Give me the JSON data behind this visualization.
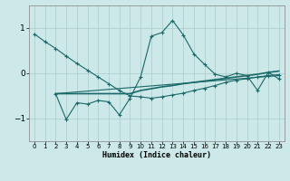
{
  "xlabel": "Humidex (Indice chaleur)",
  "background_color": "#cce8e8",
  "grid_color": "#aacccc",
  "line_color": "#1a6868",
  "xlim": [
    -0.5,
    23.5
  ],
  "ylim": [
    -1.5,
    1.5
  ],
  "yticks": [
    -1,
    0,
    1
  ],
  "xticks": [
    0,
    1,
    2,
    3,
    4,
    5,
    6,
    7,
    8,
    9,
    10,
    11,
    12,
    13,
    14,
    15,
    16,
    17,
    18,
    19,
    20,
    21,
    22,
    23
  ],
  "line1_x": [
    0,
    1,
    2,
    3,
    4,
    5,
    6,
    7,
    8,
    9,
    10,
    11,
    12,
    13,
    14,
    15,
    16,
    17,
    18,
    19,
    20,
    21,
    22,
    23
  ],
  "line1_y": [
    0.87,
    0.7,
    0.55,
    0.38,
    0.22,
    0.07,
    -0.08,
    -0.23,
    -0.38,
    -0.5,
    -0.52,
    -0.55,
    -0.52,
    -0.48,
    -0.44,
    -0.38,
    -0.33,
    -0.27,
    -0.2,
    -0.15,
    -0.12,
    -0.08,
    -0.05,
    -0.03
  ],
  "line2_x": [
    2,
    3,
    4,
    5,
    6,
    7,
    8,
    9,
    10,
    11,
    12,
    13,
    14,
    15,
    16,
    17,
    18,
    19,
    20,
    21,
    22,
    23
  ],
  "line2_y": [
    -0.45,
    -1.02,
    -0.65,
    -0.68,
    -0.6,
    -0.63,
    -0.92,
    -0.55,
    -0.08,
    0.82,
    0.9,
    1.17,
    0.85,
    0.43,
    0.2,
    -0.02,
    -0.08,
    0.0,
    -0.05,
    -0.38,
    0.02,
    -0.12
  ],
  "line3_x": [
    2,
    23
  ],
  "line3_y": [
    -0.45,
    -0.05
  ],
  "line4_x": [
    2,
    3,
    4,
    5,
    6,
    7,
    8,
    9,
    10,
    11,
    12,
    13,
    14,
    15,
    16,
    17,
    18,
    19,
    20,
    21,
    22,
    23
  ],
  "line4_y": [
    -0.45,
    -0.45,
    -0.45,
    -0.45,
    -0.45,
    -0.45,
    -0.45,
    -0.45,
    -0.38,
    -0.34,
    -0.3,
    -0.27,
    -0.23,
    -0.2,
    -0.17,
    -0.14,
    -0.11,
    -0.08,
    -0.05,
    -0.02,
    0.02,
    0.05
  ]
}
